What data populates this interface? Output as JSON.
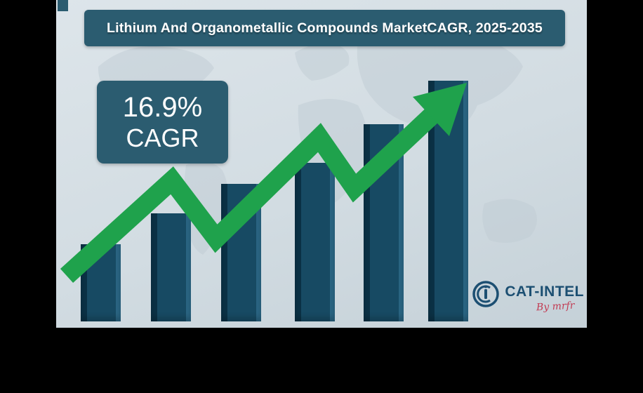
{
  "title": {
    "text": "Lithium And Organometallic Compounds MarketCAGR, 2025-2035"
  },
  "cagr_badge": {
    "value": "16.9%",
    "label": "CAGR"
  },
  "logo": {
    "brand": "CAT-INTEL",
    "byline": "By mrfr",
    "icon": "ci-ring-icon"
  },
  "colors": {
    "banner": "#2b5c70",
    "badge": "#2b5c70",
    "bar": "#174a63",
    "bar_shadow": "#0b3145",
    "bar_highlight": "#2a6583",
    "arrow": "#1fa24c",
    "canvas_top": "#dde5ea",
    "canvas_bottom": "#c5d1d8",
    "map": "#bfcbd3",
    "logo_text": "#1c4f72",
    "logo_byline": "#c23a52",
    "frame": "#000000",
    "title_text": "#ffffff"
  },
  "chart_data": {
    "type": "bar",
    "title": "Lithium And Organometallic Compounds MarketCAGR, 2025-2035",
    "annotation": "16.9% CAGR",
    "period": "2025-2035",
    "bar_count": 6,
    "values": [
      32,
      45,
      57,
      66,
      82,
      100
    ],
    "values_unit": "relative bar height, % of tallest bar (no numeric axis shown)",
    "categories": [
      "",
      "",
      "",
      "",
      "",
      ""
    ],
    "axis_labels": "none",
    "gridlines": false,
    "legend": false,
    "trend_overlay": "green upward zigzag arrow",
    "background": "world map watermark"
  }
}
